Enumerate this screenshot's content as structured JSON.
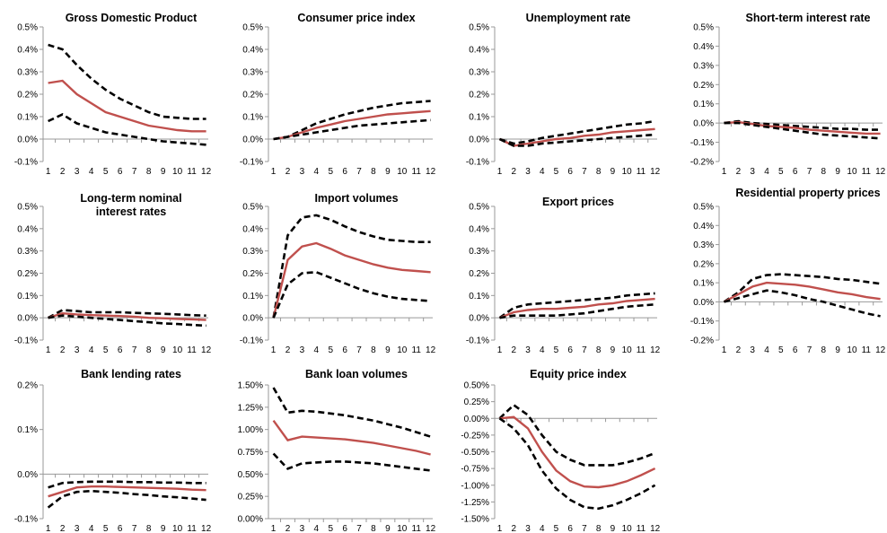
{
  "colors": {
    "central": "#c0504d",
    "bands": "#000000",
    "axis": "#999999"
  },
  "chart_data": [
    {
      "type": "line",
      "title": "Gross Domestic Product",
      "x": [
        1,
        2,
        3,
        4,
        5,
        6,
        7,
        8,
        9,
        10,
        11,
        12
      ],
      "ylim": [
        -0.1,
        0.5
      ],
      "yticks": [
        -0.1,
        0.0,
        0.1,
        0.2,
        0.3,
        0.4,
        0.5
      ],
      "ytick_labels": [
        "-0.1%",
        "0.0%",
        "0.1%",
        "0.2%",
        "0.3%",
        "0.4%",
        "0.5%"
      ],
      "series": [
        {
          "role": "upper",
          "values": [
            0.42,
            0.4,
            0.33,
            0.27,
            0.22,
            0.18,
            0.15,
            0.12,
            0.1,
            0.095,
            0.09,
            0.09
          ]
        },
        {
          "role": "central",
          "values": [
            0.25,
            0.26,
            0.2,
            0.16,
            0.12,
            0.1,
            0.08,
            0.06,
            0.05,
            0.04,
            0.035,
            0.035
          ]
        },
        {
          "role": "lower",
          "values": [
            0.08,
            0.11,
            0.07,
            0.05,
            0.03,
            0.02,
            0.01,
            0.0,
            -0.01,
            -0.015,
            -0.02,
            -0.025
          ]
        }
      ]
    },
    {
      "type": "line",
      "title": "Consumer price index",
      "x": [
        1,
        2,
        3,
        4,
        5,
        6,
        7,
        8,
        9,
        10,
        11,
        12
      ],
      "ylim": [
        -0.1,
        0.5
      ],
      "yticks": [
        -0.1,
        0.0,
        0.1,
        0.2,
        0.3,
        0.4,
        0.5
      ],
      "ytick_labels": [
        "-0.1%",
        "0.0%",
        "0.1%",
        "0.2%",
        "0.3%",
        "0.4%",
        "0.5%"
      ],
      "series": [
        {
          "role": "upper",
          "values": [
            0.0,
            0.01,
            0.04,
            0.07,
            0.09,
            0.11,
            0.125,
            0.14,
            0.15,
            0.16,
            0.165,
            0.17
          ]
        },
        {
          "role": "central",
          "values": [
            0.0,
            0.01,
            0.03,
            0.05,
            0.065,
            0.08,
            0.09,
            0.1,
            0.11,
            0.115,
            0.12,
            0.125
          ]
        },
        {
          "role": "lower",
          "values": [
            0.0,
            0.01,
            0.02,
            0.03,
            0.04,
            0.05,
            0.06,
            0.065,
            0.07,
            0.075,
            0.08,
            0.085
          ]
        }
      ]
    },
    {
      "type": "line",
      "title": "Unemployment rate",
      "x": [
        1,
        2,
        3,
        4,
        5,
        6,
        7,
        8,
        9,
        10,
        11,
        12
      ],
      "ylim": [
        -0.1,
        0.5
      ],
      "yticks": [
        -0.1,
        0.0,
        0.1,
        0.2,
        0.3,
        0.4,
        0.5
      ],
      "ytick_labels": [
        "-0.1%",
        "0.0%",
        "0.1%",
        "0.2%",
        "0.3%",
        "0.4%",
        "0.5%"
      ],
      "series": [
        {
          "role": "upper",
          "values": [
            0.0,
            -0.02,
            -0.01,
            0.005,
            0.015,
            0.025,
            0.035,
            0.045,
            0.055,
            0.065,
            0.07,
            0.08
          ]
        },
        {
          "role": "central",
          "values": [
            0.0,
            -0.03,
            -0.02,
            -0.01,
            0.0,
            0.005,
            0.015,
            0.02,
            0.03,
            0.035,
            0.04,
            0.045
          ]
        },
        {
          "role": "lower",
          "values": [
            0.0,
            -0.03,
            -0.03,
            -0.02,
            -0.015,
            -0.01,
            -0.005,
            0.0,
            0.005,
            0.01,
            0.015,
            0.02
          ]
        }
      ]
    },
    {
      "type": "line",
      "title": "Short-term interest rate",
      "x": [
        1,
        2,
        3,
        4,
        5,
        6,
        7,
        8,
        9,
        10,
        11,
        12
      ],
      "ylim": [
        -0.2,
        0.5
      ],
      "yticks": [
        -0.2,
        -0.1,
        0.0,
        0.1,
        0.2,
        0.3,
        0.4,
        0.5
      ],
      "ytick_labels": [
        "-0.2%",
        "-0.1%",
        "0.0%",
        "0.1%",
        "0.2%",
        "0.3%",
        "0.4%",
        "0.5%"
      ],
      "series": [
        {
          "role": "upper",
          "values": [
            0.0,
            0.01,
            0.0,
            -0.005,
            -0.01,
            -0.015,
            -0.02,
            -0.025,
            -0.03,
            -0.03,
            -0.035,
            -0.035
          ]
        },
        {
          "role": "central",
          "values": [
            0.0,
            0.005,
            -0.005,
            -0.015,
            -0.02,
            -0.025,
            -0.035,
            -0.04,
            -0.045,
            -0.05,
            -0.055,
            -0.055
          ]
        },
        {
          "role": "lower",
          "values": [
            0.0,
            0.0,
            -0.01,
            -0.02,
            -0.03,
            -0.04,
            -0.05,
            -0.06,
            -0.065,
            -0.07,
            -0.075,
            -0.08
          ]
        }
      ]
    },
    {
      "type": "line",
      "title": "Long-term nominal interest rates",
      "title_lines": [
        "Long-term nominal",
        "interest rates"
      ],
      "x": [
        1,
        2,
        3,
        4,
        5,
        6,
        7,
        8,
        9,
        10,
        11,
        12
      ],
      "ylim": [
        -0.1,
        0.5
      ],
      "yticks": [
        -0.1,
        0.0,
        0.1,
        0.2,
        0.3,
        0.4,
        0.5
      ],
      "ytick_labels": [
        "-0.1%",
        "0.0%",
        "0.1%",
        "0.2%",
        "0.3%",
        "0.4%",
        "0.5%"
      ],
      "series": [
        {
          "role": "upper",
          "values": [
            0.0,
            0.035,
            0.03,
            0.025,
            0.025,
            0.025,
            0.022,
            0.02,
            0.018,
            0.015,
            0.012,
            0.01
          ]
        },
        {
          "role": "central",
          "values": [
            0.0,
            0.02,
            0.015,
            0.012,
            0.01,
            0.008,
            0.005,
            0.0,
            -0.002,
            -0.005,
            -0.007,
            -0.01
          ]
        },
        {
          "role": "lower",
          "values": [
            0.0,
            0.01,
            0.005,
            0.0,
            -0.005,
            -0.01,
            -0.015,
            -0.02,
            -0.025,
            -0.028,
            -0.032,
            -0.035
          ]
        }
      ]
    },
    {
      "type": "line",
      "title": "Import volumes",
      "x": [
        1,
        2,
        3,
        4,
        5,
        6,
        7,
        8,
        9,
        10,
        11,
        12
      ],
      "ylim": [
        -0.1,
        0.5
      ],
      "yticks": [
        -0.1,
        0.0,
        0.1,
        0.2,
        0.3,
        0.4,
        0.5
      ],
      "ytick_labels": [
        "-0.1%",
        "0.0%",
        "0.1%",
        "0.2%",
        "0.3%",
        "0.4%",
        "0.5%"
      ],
      "series": [
        {
          "role": "upper",
          "values": [
            0.0,
            0.37,
            0.45,
            0.46,
            0.44,
            0.41,
            0.385,
            0.365,
            0.35,
            0.345,
            0.34,
            0.34
          ]
        },
        {
          "role": "central",
          "values": [
            0.0,
            0.26,
            0.32,
            0.335,
            0.31,
            0.28,
            0.26,
            0.24,
            0.225,
            0.215,
            0.21,
            0.205
          ]
        },
        {
          "role": "lower",
          "values": [
            0.0,
            0.15,
            0.2,
            0.205,
            0.18,
            0.155,
            0.13,
            0.11,
            0.095,
            0.085,
            0.08,
            0.075
          ]
        }
      ]
    },
    {
      "type": "line",
      "title": "Export prices",
      "x": [
        1,
        2,
        3,
        4,
        5,
        6,
        7,
        8,
        9,
        10,
        11,
        12
      ],
      "ylim": [
        -0.1,
        0.5
      ],
      "yticks": [
        -0.1,
        0.0,
        0.1,
        0.2,
        0.3,
        0.4,
        0.5
      ],
      "ytick_labels": [
        "-0.1%",
        "0.0%",
        "0.1%",
        "0.2%",
        "0.3%",
        "0.4%",
        "0.5%"
      ],
      "series": [
        {
          "role": "upper",
          "values": [
            0.0,
            0.045,
            0.06,
            0.065,
            0.07,
            0.075,
            0.08,
            0.085,
            0.09,
            0.1,
            0.105,
            0.11
          ]
        },
        {
          "role": "central",
          "values": [
            0.0,
            0.025,
            0.035,
            0.04,
            0.04,
            0.045,
            0.05,
            0.06,
            0.065,
            0.075,
            0.08,
            0.085
          ]
        },
        {
          "role": "lower",
          "values": [
            0.0,
            0.01,
            0.01,
            0.01,
            0.01,
            0.015,
            0.02,
            0.03,
            0.04,
            0.05,
            0.055,
            0.06
          ]
        }
      ]
    },
    {
      "type": "line",
      "title": "Residential property prices",
      "x": [
        1,
        2,
        3,
        4,
        5,
        6,
        7,
        8,
        9,
        10,
        11,
        12
      ],
      "ylim": [
        -0.2,
        0.5
      ],
      "yticks": [
        -0.2,
        -0.1,
        0.0,
        0.1,
        0.2,
        0.3,
        0.4,
        0.5
      ],
      "ytick_labels": [
        "-0.2%",
        "-0.1%",
        "0.0%",
        "0.1%",
        "0.2%",
        "0.3%",
        "0.4%",
        "0.5%"
      ],
      "series": [
        {
          "role": "upper",
          "values": [
            0.0,
            0.05,
            0.12,
            0.14,
            0.145,
            0.14,
            0.135,
            0.13,
            0.12,
            0.115,
            0.105,
            0.095
          ]
        },
        {
          "role": "central",
          "values": [
            0.0,
            0.04,
            0.08,
            0.1,
            0.095,
            0.09,
            0.08,
            0.065,
            0.05,
            0.04,
            0.025,
            0.015
          ]
        },
        {
          "role": "lower",
          "values": [
            0.0,
            0.02,
            0.04,
            0.06,
            0.05,
            0.035,
            0.015,
            0.0,
            -0.02,
            -0.04,
            -0.06,
            -0.075
          ]
        }
      ]
    },
    {
      "type": "line",
      "title": "Bank lending rates",
      "x": [
        1,
        2,
        3,
        4,
        5,
        6,
        7,
        8,
        9,
        10,
        11,
        12
      ],
      "ylim": [
        -0.1,
        0.2
      ],
      "yticks": [
        -0.1,
        0.0,
        0.1,
        0.2
      ],
      "ytick_labels": [
        "-0.1%",
        "0.0%",
        "0.1%",
        "0.2%"
      ],
      "series": [
        {
          "role": "upper",
          "values": [
            -0.03,
            -0.02,
            -0.018,
            -0.017,
            -0.017,
            -0.017,
            -0.018,
            -0.018,
            -0.019,
            -0.019,
            -0.02,
            -0.02
          ]
        },
        {
          "role": "central",
          "values": [
            -0.05,
            -0.04,
            -0.03,
            -0.028,
            -0.028,
            -0.029,
            -0.03,
            -0.031,
            -0.032,
            -0.033,
            -0.035,
            -0.036
          ]
        },
        {
          "role": "lower",
          "values": [
            -0.075,
            -0.05,
            -0.04,
            -0.038,
            -0.04,
            -0.042,
            -0.045,
            -0.047,
            -0.05,
            -0.052,
            -0.055,
            -0.058
          ]
        }
      ]
    },
    {
      "type": "line",
      "title": "Bank loan volumes",
      "x": [
        1,
        2,
        3,
        4,
        5,
        6,
        7,
        8,
        9,
        10,
        11,
        12
      ],
      "ylim": [
        0.0,
        1.5
      ],
      "yticks": [
        0.0,
        0.25,
        0.5,
        0.75,
        1.0,
        1.25,
        1.5
      ],
      "ytick_labels": [
        "0.00%",
        "0.25%",
        "0.50%",
        "0.75%",
        "1.00%",
        "1.25%",
        "1.50%"
      ],
      "series": [
        {
          "role": "upper",
          "values": [
            1.47,
            1.19,
            1.21,
            1.2,
            1.18,
            1.16,
            1.13,
            1.1,
            1.06,
            1.02,
            0.97,
            0.92
          ]
        },
        {
          "role": "central",
          "values": [
            1.1,
            0.88,
            0.92,
            0.91,
            0.9,
            0.89,
            0.87,
            0.85,
            0.82,
            0.79,
            0.76,
            0.72
          ]
        },
        {
          "role": "lower",
          "values": [
            0.73,
            0.56,
            0.62,
            0.63,
            0.64,
            0.64,
            0.63,
            0.62,
            0.6,
            0.58,
            0.56,
            0.54
          ]
        }
      ]
    },
    {
      "type": "line",
      "title": "Equity price index",
      "x": [
        1,
        2,
        3,
        4,
        5,
        6,
        7,
        8,
        9,
        10,
        11,
        12
      ],
      "ylim": [
        -1.5,
        0.5
      ],
      "yticks": [
        -1.5,
        -1.25,
        -1.0,
        -0.75,
        -0.5,
        -0.25,
        0.0,
        0.25,
        0.5
      ],
      "ytick_labels": [
        "-1.50%",
        "-1.25%",
        "-1.00%",
        "-0.75%",
        "-0.50%",
        "-0.25%",
        "0.00%",
        "0.25%",
        "0.50%"
      ],
      "series": [
        {
          "role": "upper",
          "values": [
            0.0,
            0.2,
            0.05,
            -0.25,
            -0.5,
            -0.62,
            -0.7,
            -0.7,
            -0.7,
            -0.66,
            -0.6,
            -0.52
          ]
        },
        {
          "role": "central",
          "values": [
            0.0,
            0.02,
            -0.15,
            -0.5,
            -0.78,
            -0.94,
            -1.02,
            -1.03,
            -1.0,
            -0.94,
            -0.85,
            -0.75
          ]
        },
        {
          "role": "lower",
          "values": [
            0.0,
            -0.15,
            -0.4,
            -0.78,
            -1.05,
            -1.22,
            -1.33,
            -1.35,
            -1.3,
            -1.22,
            -1.12,
            -1.0
          ]
        }
      ]
    }
  ]
}
